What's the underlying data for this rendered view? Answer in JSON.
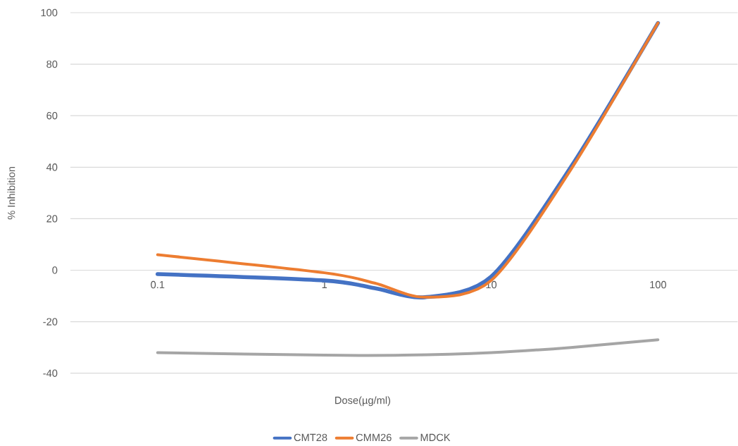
{
  "chart_data": {
    "type": "line",
    "xlabel": "Dose(µg/ml)",
    "ylabel": "% Inhibition",
    "log": "x",
    "x": [
      0.1,
      1,
      2,
      4,
      10,
      30,
      100
    ],
    "series": [
      {
        "name": "CMT28",
        "color": "#4472c4",
        "values": [
          -1.5,
          -4,
          -7,
          -10.5,
          -2.5,
          40,
          96
        ]
      },
      {
        "name": "CMM26",
        "color": "#ed7d31",
        "values": [
          6,
          -1,
          -5,
          -10.5,
          -4,
          39,
          96
        ]
      },
      {
        "name": "MDCK",
        "color": "#a5a5a5",
        "x": [
          0.1,
          1,
          3,
          10,
          30,
          100
        ],
        "values": [
          -32,
          -33,
          -33,
          -32,
          -30,
          -27
        ]
      }
    ],
    "xlim": [
      0.03,
      300
    ],
    "xticks": [
      0.1,
      1,
      10,
      100
    ],
    "ylim": [
      -40,
      100
    ],
    "yticks": [
      -40,
      -20,
      0,
      20,
      40,
      60,
      80,
      100
    ],
    "grid": "y",
    "legend": "bottom",
    "marker": "none",
    "line_style": "solid"
  }
}
